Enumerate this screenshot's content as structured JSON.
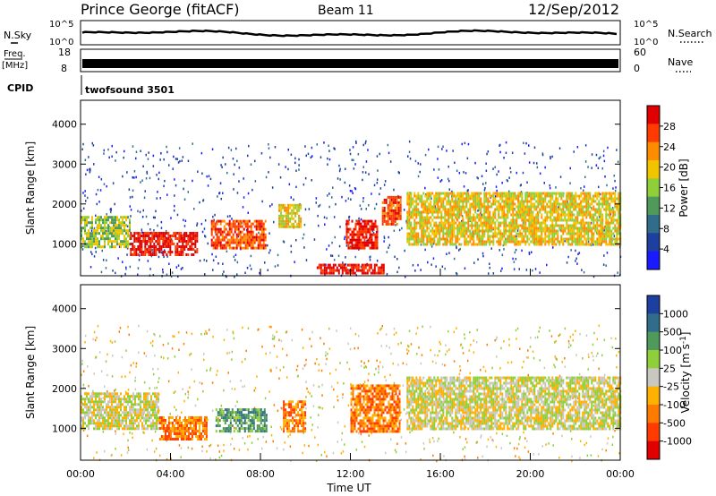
{
  "header": {
    "station": "Prince George (fitACF)",
    "beam": "Beam 11",
    "date": "12/Sep/2012"
  },
  "summary_panel": {
    "left_top": "N.Sky",
    "right_top": "N.Search",
    "left_scale_hi": "10^5",
    "left_scale_lo": "10^0",
    "right_scale_hi": "10^5",
    "right_scale_lo": "10^0",
    "freq_label_1": "Freq.",
    "freq_label_2": "[MHz]",
    "freq_hi": "18",
    "freq_lo": "8",
    "nave_label": "Nave",
    "nave_hi": "60",
    "nave_lo": "0",
    "cpid_label": "CPID",
    "cpid_value": "twofsound 3501"
  },
  "colors": {
    "power_scale": [
      "#1a1aff",
      "#1c3fa0",
      "#2f6d8a",
      "#4f9a5a",
      "#8fcf3a",
      "#f2c400",
      "#ff8c00",
      "#ff3b00",
      "#e00000"
    ],
    "velocity_scale": [
      "#1c3fa0",
      "#2f6d8a",
      "#4f9a5a",
      "#8fcf3a",
      "#c8c8c0",
      "#ffb000",
      "#ff7a00",
      "#ff3b00",
      "#e00000"
    ]
  },
  "chart_data": [
    {
      "type": "heatmap",
      "name": "power",
      "ylabel": "Slant Range [km]",
      "ylim": [
        200,
        4600
      ],
      "yticks": [
        "1000",
        "2000",
        "3000",
        "4000"
      ],
      "xlim": [
        0,
        24
      ],
      "colorbar_label": "Power [dB]",
      "colorbar_ticks": [
        "4",
        "8",
        "12",
        "16",
        "20",
        "24",
        "28"
      ],
      "regions": [
        {
          "t0": 0.0,
          "t1": 2.2,
          "r0": 900,
          "r1": 1700,
          "level": 4
        },
        {
          "t0": 2.2,
          "t1": 5.2,
          "r0": 700,
          "r1": 1300,
          "level": 8
        },
        {
          "t0": 5.8,
          "t1": 8.2,
          "r0": 900,
          "r1": 1600,
          "level": 7
        },
        {
          "t0": 8.8,
          "t1": 9.8,
          "r0": 1400,
          "r1": 2000,
          "level": 5
        },
        {
          "t0": 11.8,
          "t1": 13.2,
          "r0": 900,
          "r1": 1600,
          "level": 8
        },
        {
          "t0": 13.4,
          "t1": 14.2,
          "r0": 1500,
          "r1": 2200,
          "level": 7
        },
        {
          "t0": 10.5,
          "t1": 13.5,
          "r0": 250,
          "r1": 500,
          "level": 8
        },
        {
          "t0": 14.5,
          "t1": 24.0,
          "r0": 1000,
          "r1": 2300,
          "level": 5
        }
      ]
    },
    {
      "type": "heatmap",
      "name": "velocity",
      "ylabel": "Slant Range [km]",
      "ylim": [
        200,
        4600
      ],
      "yticks": [
        "1000",
        "2000",
        "3000",
        "4000"
      ],
      "xlabel": "Time UT",
      "xticks": [
        "00:00",
        "04:00",
        "08:00",
        "12:00",
        "16:00",
        "20:00",
        "00:00"
      ],
      "xlim": [
        0,
        24
      ],
      "colorbar_label": "Velocity [m s^-1]",
      "colorbar_ticks": [
        "1000",
        "500",
        "100",
        "25",
        "-25",
        "-100",
        "-500",
        "-1000"
      ],
      "regions": [
        {
          "t0": 0.0,
          "t1": 3.5,
          "r0": 1000,
          "r1": 1900,
          "level": 4
        },
        {
          "t0": 3.5,
          "t1": 5.6,
          "r0": 700,
          "r1": 1300,
          "level": 6
        },
        {
          "t0": 6.0,
          "t1": 8.3,
          "r0": 900,
          "r1": 1500,
          "level": 2
        },
        {
          "t0": 9.0,
          "t1": 10.0,
          "r0": 900,
          "r1": 1700,
          "level": 6
        },
        {
          "t0": 12.0,
          "t1": 14.2,
          "r0": 900,
          "r1": 2100,
          "level": 6
        },
        {
          "t0": 14.5,
          "t1": 24.0,
          "r0": 1000,
          "r1": 2300,
          "level": 4
        }
      ]
    }
  ]
}
